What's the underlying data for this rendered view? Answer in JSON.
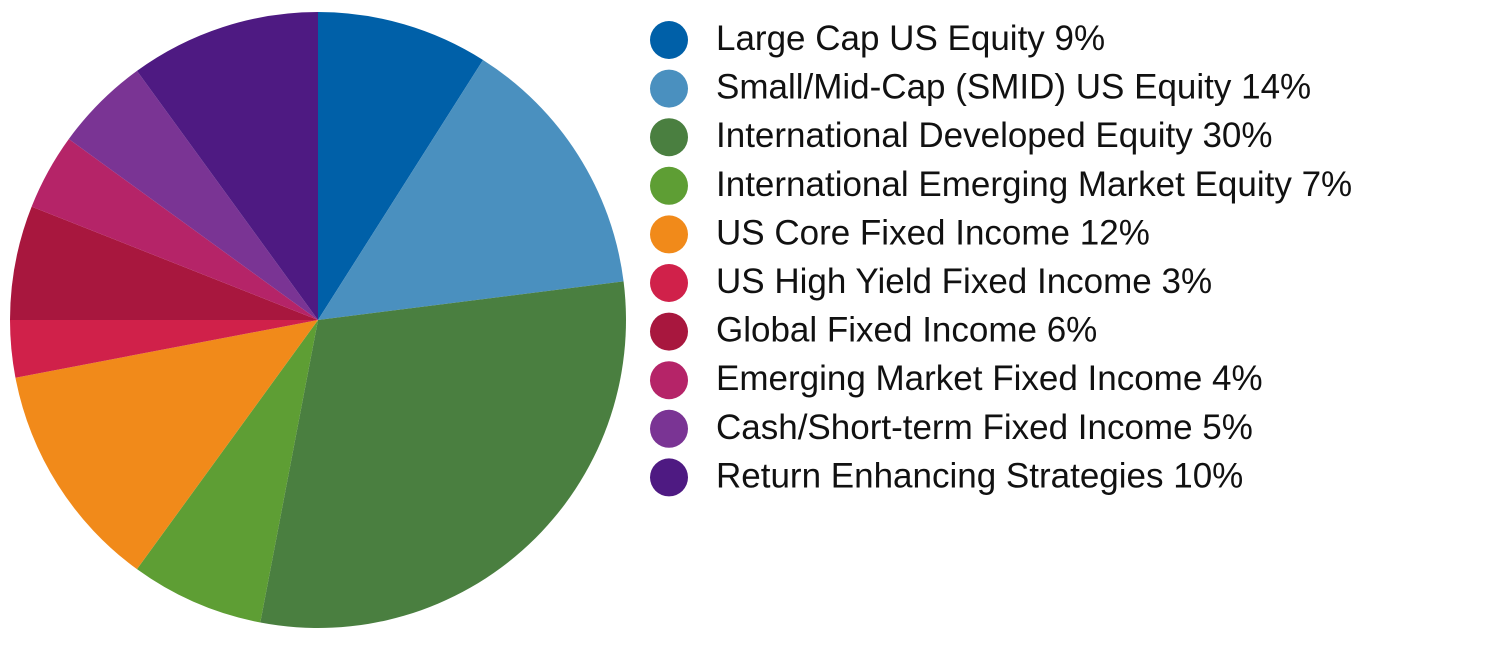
{
  "chart_data": {
    "type": "pie",
    "categories": [
      "Large Cap US Equity",
      "Small/Mid-Cap (SMID) US Equity",
      "International Developed Equity",
      "International Emerging Market Equity",
      "US Core Fixed Income",
      "US High Yield Fixed Income",
      "Global Fixed Income",
      "Emerging Market Fixed Income",
      "Cash/Short-term Fixed Income",
      "Return Enhancing Strategies"
    ],
    "values": [
      9,
      14,
      30,
      7,
      12,
      3,
      6,
      4,
      5,
      10
    ],
    "value_labels": [
      "9%",
      "14%",
      "30%",
      "7%",
      "12%",
      "3%",
      "6%",
      "4%",
      "5%",
      "10%"
    ],
    "colors": [
      "#0060a8",
      "#4a90bf",
      "#4a7f40",
      "#5e9e34",
      "#f18a1a",
      "#d0214a",
      "#a8173e",
      "#b52468",
      "#7a3494",
      "#4e1a82"
    ]
  }
}
